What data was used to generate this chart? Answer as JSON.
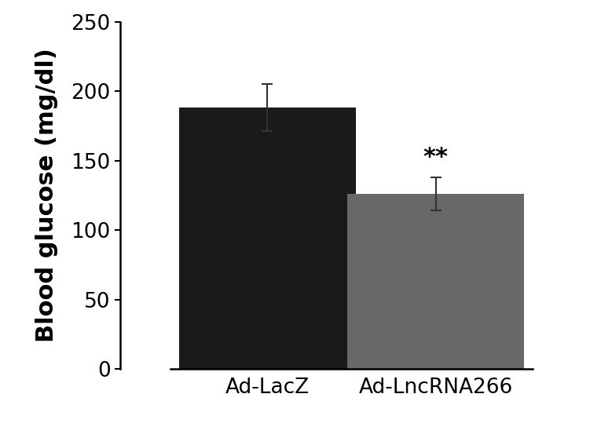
{
  "categories": [
    "Ad-LacZ",
    "Ad-LncRNA266"
  ],
  "values": [
    188,
    126
  ],
  "errors": [
    17,
    12
  ],
  "bar_colors": [
    "#1a1a1a",
    "#686868"
  ],
  "ylabel": "Blood glucose (mg/dl)",
  "ylim": [
    0,
    250
  ],
  "yticks": [
    0,
    50,
    100,
    150,
    200,
    250
  ],
  "significance_label": "**",
  "significance_bar_index": 1,
  "background_color": "#ffffff",
  "bar_width": 0.42,
  "ylabel_fontsize": 22,
  "tick_fontsize": 19,
  "sig_fontsize": 22,
  "xlabel_fontsize": 19,
  "error_capsize": 5,
  "error_linewidth": 1.5,
  "bar_positions": [
    0.35,
    0.75
  ]
}
